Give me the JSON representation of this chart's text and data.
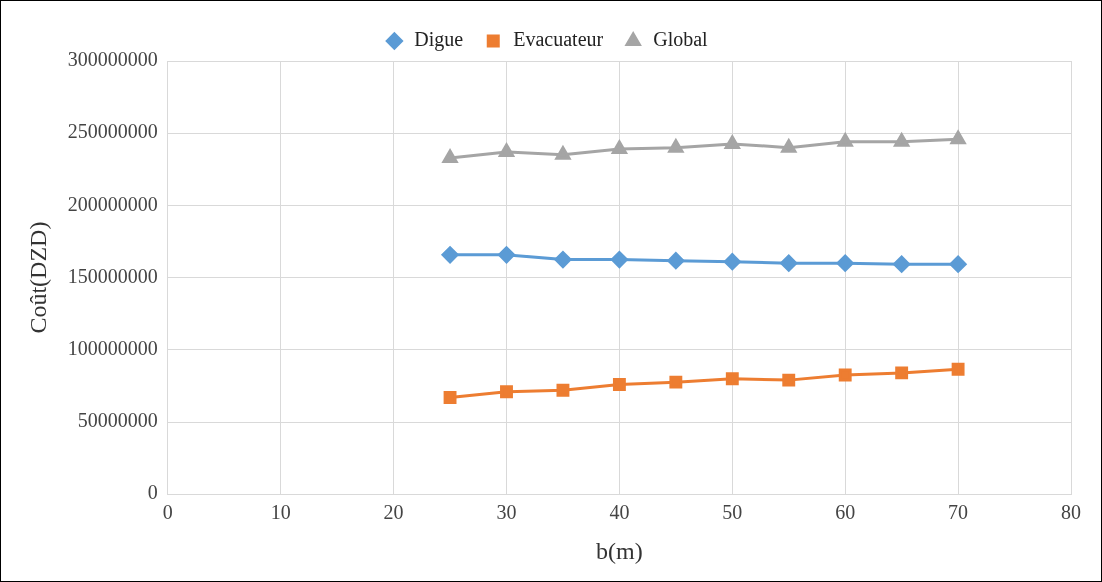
{
  "chart_data": {
    "type": "line",
    "xlabel": "b(m)",
    "ylabel": "Coût(DZD)",
    "x": [
      25,
      30,
      35,
      40,
      45,
      50,
      55,
      60,
      65,
      70
    ],
    "series": [
      {
        "name": "Digue",
        "color": "#5b9bd5",
        "marker": "diamond",
        "values": [
          165800000,
          165800000,
          162500000,
          162500000,
          161700000,
          161000000,
          160000000,
          160000000,
          159300000,
          159300000
        ]
      },
      {
        "name": "Evacuateur",
        "color": "#ed7d31",
        "marker": "square",
        "values": [
          67000000,
          71000000,
          72000000,
          76000000,
          77600000,
          80000000,
          79000000,
          82500000,
          84000000,
          86500000
        ]
      },
      {
        "name": "Global",
        "color": "#a5a5a5",
        "marker": "triangle",
        "values": [
          232900000,
          237000000,
          235000000,
          239000000,
          240000000,
          242600000,
          240000000,
          244000000,
          244000000,
          245800000
        ]
      }
    ],
    "xlim": [
      0,
      80
    ],
    "xticks": [
      0,
      10,
      20,
      30,
      40,
      50,
      60,
      70,
      80
    ],
    "ylim": [
      0,
      300000000
    ],
    "yticks": [
      0,
      50000000,
      100000000,
      150000000,
      200000000,
      250000000,
      300000000
    ],
    "grid": true,
    "legend": "top",
    "line_style": "solid"
  }
}
